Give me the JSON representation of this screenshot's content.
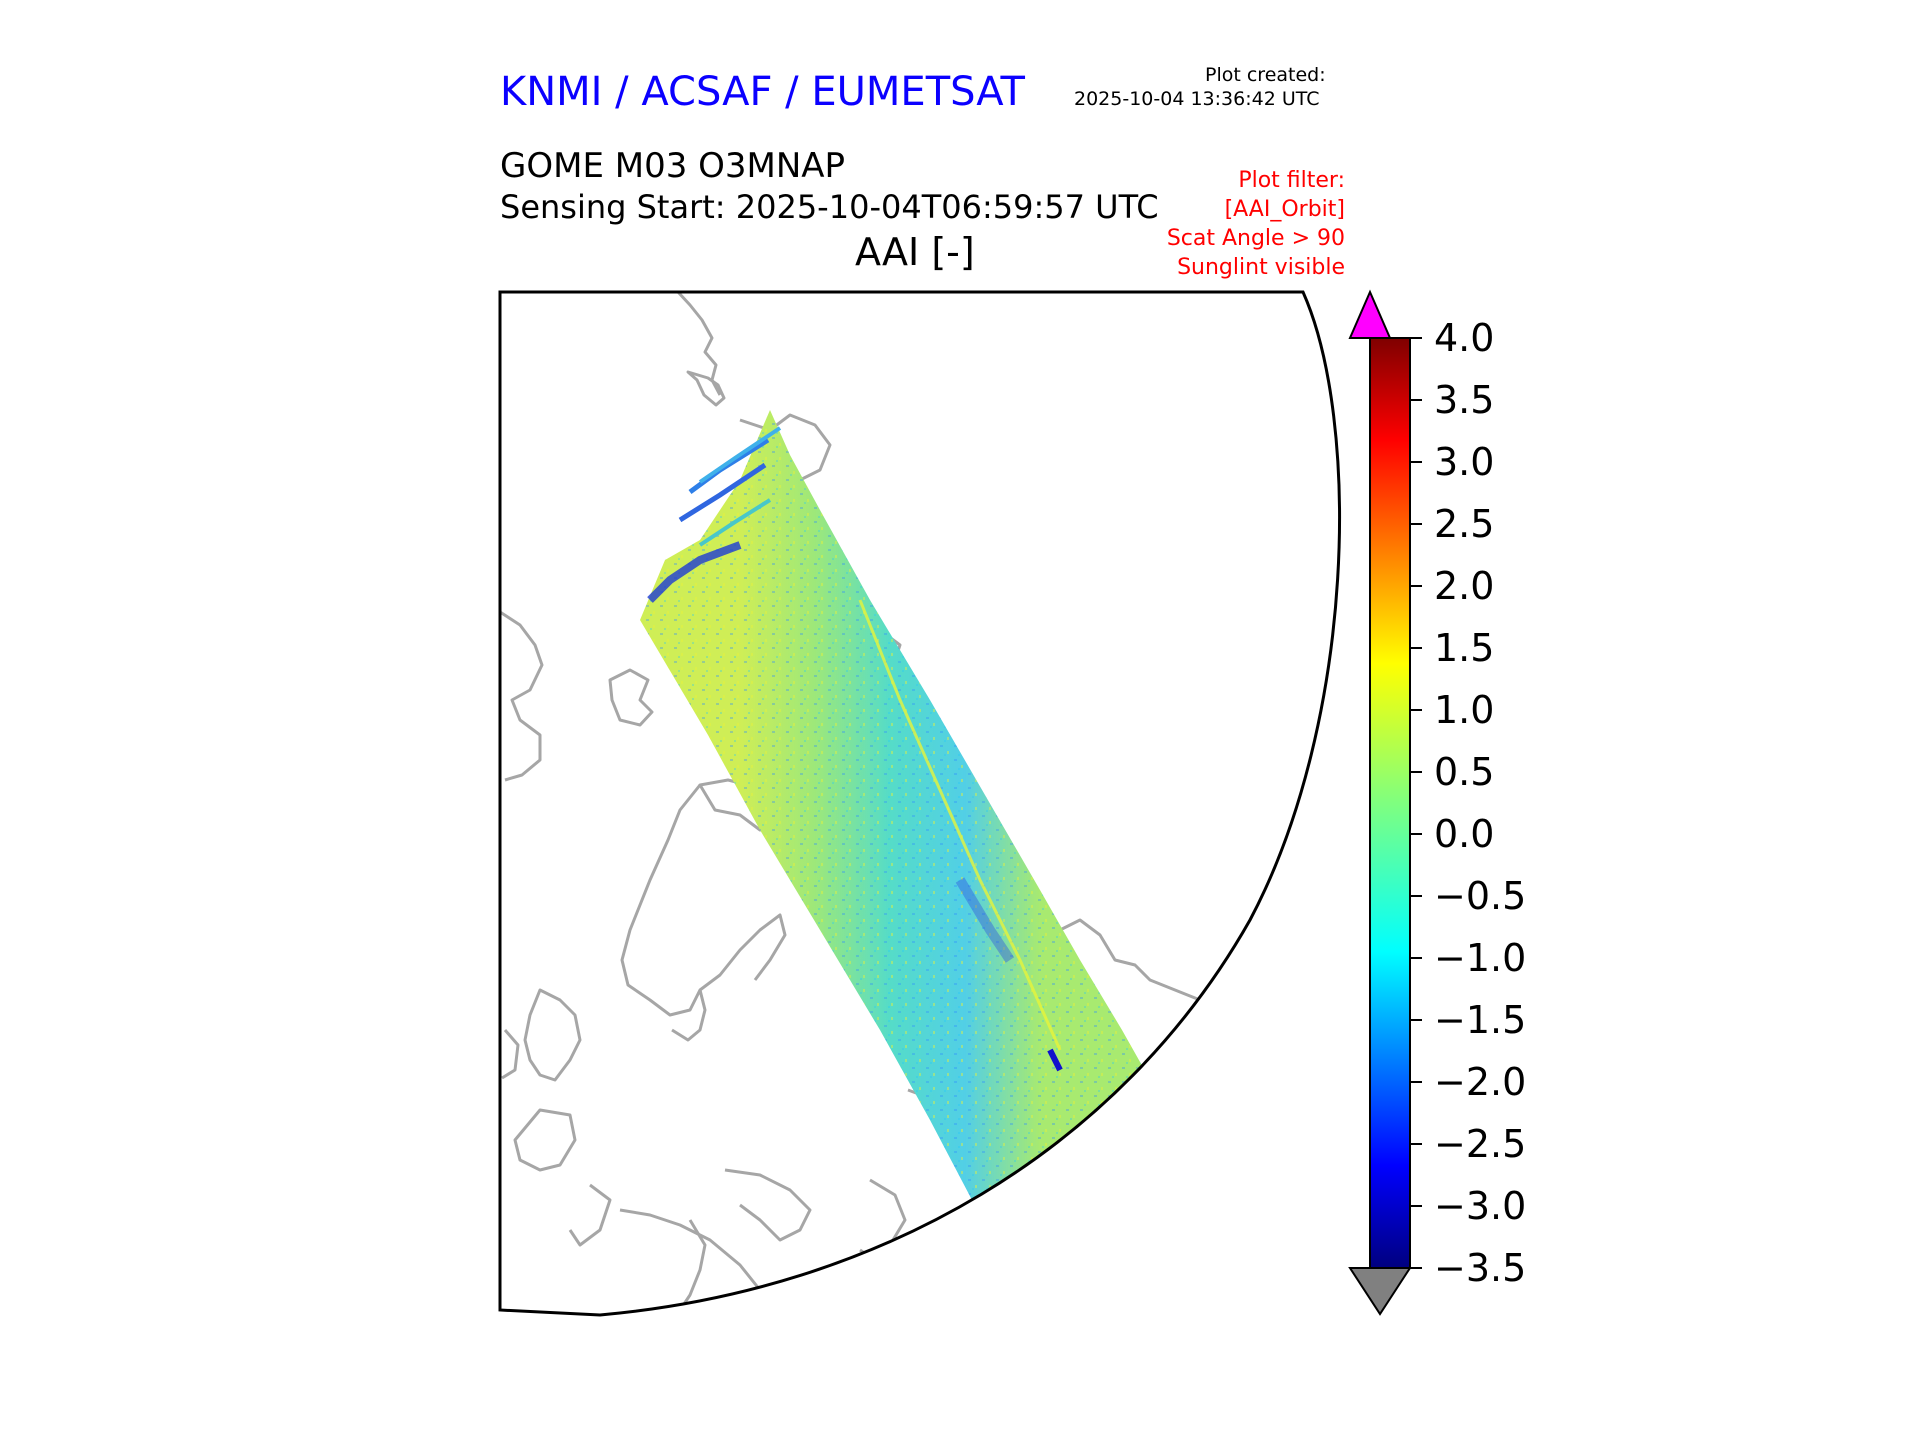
{
  "header": {
    "brand": "KNMI / ACSAF / EUMETSAT",
    "plot_created_label": "Plot created:",
    "plot_created_time": "2025-10-04 13:36:42 UTC",
    "product": "GOME M03 O3MNAP",
    "sensing_start": "Sensing Start: 2025-10-04T06:59:57 UTC",
    "variable": "AAI [-]",
    "plot_filter": [
      "Plot filter:",
      "[AAI_Orbit]",
      "Scat Angle > 90",
      "Sunglint visible"
    ]
  },
  "map": {
    "projection": "polar stereographic (north)",
    "coastline_color": "#a6a6a6",
    "frame_color": "#000000"
  },
  "colorbar": {
    "colormap": "jet",
    "min": -3.5,
    "max": 4.0,
    "ticks": [
      "4.0",
      "3.5",
      "3.0",
      "2.5",
      "2.0",
      "1.5",
      "1.0",
      "0.5",
      "0.0",
      "−0.5",
      "−1.0",
      "−1.5",
      "−2.0",
      "−2.5",
      "−3.0",
      "−3.5"
    ],
    "over_color": "#ff00ff",
    "under_color": "#808080"
  }
}
